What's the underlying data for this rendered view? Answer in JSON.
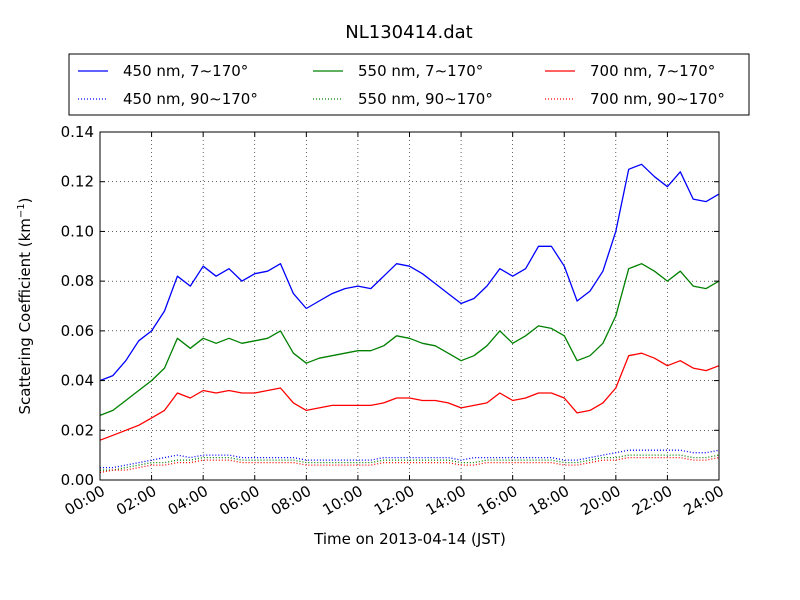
{
  "chart_data": {
    "type": "line",
    "title": "NL130414.dat",
    "xlabel": "Time on 2013-04-14 (JST)",
    "ylabel": "Scattering Coefficient (km",
    "ylabel_sup": "−1",
    "ylabel_end": ")",
    "xlim": [
      0,
      24
    ],
    "ylim": [
      0,
      0.14
    ],
    "grid": true,
    "legend_position": "top",
    "x_ticks": [
      0,
      2,
      4,
      6,
      8,
      10,
      12,
      14,
      16,
      18,
      20,
      22,
      24
    ],
    "x_tick_labels": [
      "00:00",
      "02:00",
      "04:00",
      "06:00",
      "08:00",
      "10:00",
      "12:00",
      "14:00",
      "16:00",
      "18:00",
      "20:00",
      "22:00",
      "24:00"
    ],
    "y_ticks": [
      0,
      0.02,
      0.04,
      0.06,
      0.08,
      0.1,
      0.12,
      0.14
    ],
    "y_tick_labels": [
      "0.00",
      "0.02",
      "0.04",
      "0.06",
      "0.08",
      "0.10",
      "0.12",
      "0.14"
    ],
    "x": [
      0,
      0.5,
      1,
      1.5,
      2,
      2.5,
      3,
      3.5,
      4,
      4.5,
      5,
      5.5,
      6,
      6.5,
      7,
      7.5,
      8,
      8.5,
      9,
      9.5,
      10,
      10.5,
      11,
      11.5,
      12,
      12.5,
      13,
      13.5,
      14,
      14.5,
      15,
      15.5,
      16,
      16.5,
      17,
      17.5,
      18,
      18.5,
      19,
      19.5,
      20,
      20.5,
      21,
      21.5,
      22,
      22.5,
      23,
      23.5,
      24
    ],
    "series": [
      {
        "name": "450 nm, 7∼170°",
        "color": "#0000ff",
        "style": "solid",
        "values": [
          0.04,
          0.042,
          0.048,
          0.056,
          0.06,
          0.068,
          0.082,
          0.078,
          0.086,
          0.082,
          0.085,
          0.08,
          0.083,
          0.084,
          0.087,
          0.075,
          0.069,
          0.072,
          0.075,
          0.077,
          0.078,
          0.077,
          0.082,
          0.087,
          0.086,
          0.083,
          0.079,
          0.075,
          0.071,
          0.073,
          0.078,
          0.085,
          0.082,
          0.085,
          0.094,
          0.094,
          0.086,
          0.072,
          0.076,
          0.084,
          0.1,
          0.125,
          0.127,
          0.122,
          0.118,
          0.124,
          0.113,
          0.112,
          0.115
        ]
      },
      {
        "name": "450 nm, 90∼170°",
        "color": "#0000ff",
        "style": "dotted",
        "values": [
          0.005,
          0.005,
          0.006,
          0.007,
          0.008,
          0.009,
          0.01,
          0.009,
          0.01,
          0.01,
          0.01,
          0.009,
          0.009,
          0.009,
          0.009,
          0.009,
          0.008,
          0.008,
          0.008,
          0.008,
          0.008,
          0.008,
          0.009,
          0.009,
          0.009,
          0.009,
          0.009,
          0.009,
          0.008,
          0.009,
          0.009,
          0.009,
          0.009,
          0.009,
          0.009,
          0.009,
          0.008,
          0.008,
          0.009,
          0.01,
          0.011,
          0.012,
          0.012,
          0.012,
          0.012,
          0.012,
          0.011,
          0.011,
          0.012
        ]
      },
      {
        "name": "550 nm, 7∼170°",
        "color": "#008000",
        "style": "solid",
        "values": [
          0.026,
          0.028,
          0.032,
          0.036,
          0.04,
          0.045,
          0.057,
          0.053,
          0.057,
          0.055,
          0.057,
          0.055,
          0.056,
          0.057,
          0.06,
          0.051,
          0.047,
          0.049,
          0.05,
          0.051,
          0.052,
          0.052,
          0.054,
          0.058,
          0.057,
          0.055,
          0.054,
          0.051,
          0.048,
          0.05,
          0.054,
          0.06,
          0.055,
          0.058,
          0.062,
          0.061,
          0.058,
          0.048,
          0.05,
          0.055,
          0.066,
          0.085,
          0.087,
          0.084,
          0.08,
          0.084,
          0.078,
          0.077,
          0.08
        ]
      },
      {
        "name": "550 nm, 90∼170°",
        "color": "#008000",
        "style": "dotted",
        "values": [
          0.004,
          0.004,
          0.005,
          0.006,
          0.007,
          0.007,
          0.008,
          0.008,
          0.009,
          0.009,
          0.009,
          0.008,
          0.008,
          0.008,
          0.008,
          0.008,
          0.007,
          0.007,
          0.007,
          0.007,
          0.007,
          0.007,
          0.008,
          0.008,
          0.008,
          0.008,
          0.008,
          0.008,
          0.007,
          0.007,
          0.008,
          0.008,
          0.008,
          0.008,
          0.008,
          0.008,
          0.007,
          0.007,
          0.008,
          0.009,
          0.009,
          0.01,
          0.01,
          0.01,
          0.01,
          0.01,
          0.009,
          0.009,
          0.01
        ]
      },
      {
        "name": "700 nm, 7∼170°",
        "color": "#ff0000",
        "style": "solid",
        "values": [
          0.016,
          0.018,
          0.02,
          0.022,
          0.025,
          0.028,
          0.035,
          0.033,
          0.036,
          0.035,
          0.036,
          0.035,
          0.035,
          0.036,
          0.037,
          0.031,
          0.028,
          0.029,
          0.03,
          0.03,
          0.03,
          0.03,
          0.031,
          0.033,
          0.033,
          0.032,
          0.032,
          0.031,
          0.029,
          0.03,
          0.031,
          0.035,
          0.032,
          0.033,
          0.035,
          0.035,
          0.033,
          0.027,
          0.028,
          0.031,
          0.037,
          0.05,
          0.051,
          0.049,
          0.046,
          0.048,
          0.045,
          0.044,
          0.046
        ]
      },
      {
        "name": "700 nm, 90∼170°",
        "color": "#ff0000",
        "style": "dotted",
        "values": [
          0.003,
          0.004,
          0.004,
          0.005,
          0.006,
          0.006,
          0.007,
          0.007,
          0.008,
          0.008,
          0.008,
          0.007,
          0.007,
          0.007,
          0.007,
          0.007,
          0.006,
          0.006,
          0.006,
          0.006,
          0.006,
          0.006,
          0.007,
          0.007,
          0.007,
          0.007,
          0.007,
          0.007,
          0.006,
          0.006,
          0.007,
          0.007,
          0.007,
          0.007,
          0.007,
          0.007,
          0.006,
          0.006,
          0.007,
          0.008,
          0.008,
          0.009,
          0.009,
          0.009,
          0.009,
          0.009,
          0.008,
          0.008,
          0.009
        ]
      }
    ]
  }
}
